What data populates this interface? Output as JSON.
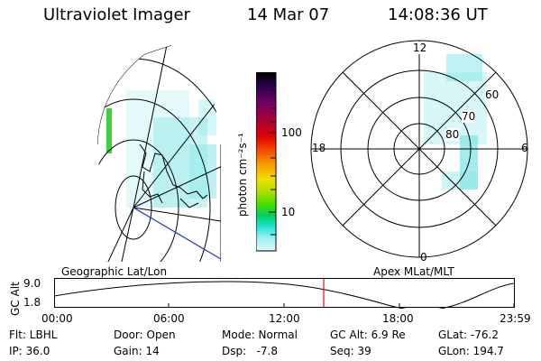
{
  "header": {
    "title": "Ultraviolet Imager",
    "date": "14 Mar 07",
    "time": "14:08:36 UT"
  },
  "colorbar": {
    "unit_label": "photon cm⁻²s⁻¹",
    "ticks": [
      "100",
      "10"
    ],
    "colors": [
      "#000000",
      "#2a0050",
      "#7a0060",
      "#b00030",
      "#e00000",
      "#f05000",
      "#f8a000",
      "#f0e000",
      "#a0e000",
      "#40e000",
      "#00d060",
      "#20e0d0",
      "#a0f0f0",
      "#e0f8f8"
    ]
  },
  "geo_panel": {
    "label": "Geographic Lat/Lon"
  },
  "polar_panel": {
    "label": "Apex MLat/MLT",
    "mlt_labels": {
      "top": "12",
      "left": "18",
      "right": "6",
      "bottom": "0"
    },
    "lat_labels": [
      "60",
      "70",
      "80"
    ]
  },
  "altitude_plot": {
    "ylabel": "GC Alt",
    "yticks": [
      "9.0",
      "1.8"
    ],
    "xticks": [
      "00:00",
      "06:00",
      "12:00",
      "18:00",
      "23:59"
    ],
    "current_marker_color": "#ff0000"
  },
  "footer": {
    "r1": [
      "Flt: LBHL",
      "Door: Open",
      "Mode: Normal",
      "GC Alt: 6.9 Re",
      "GLat: -76.2"
    ],
    "r2": [
      "IP: 36.0",
      "Gain: 14",
      "Dsp:   -7.8",
      "Seq: 39",
      "GLon: 194.7"
    ]
  }
}
